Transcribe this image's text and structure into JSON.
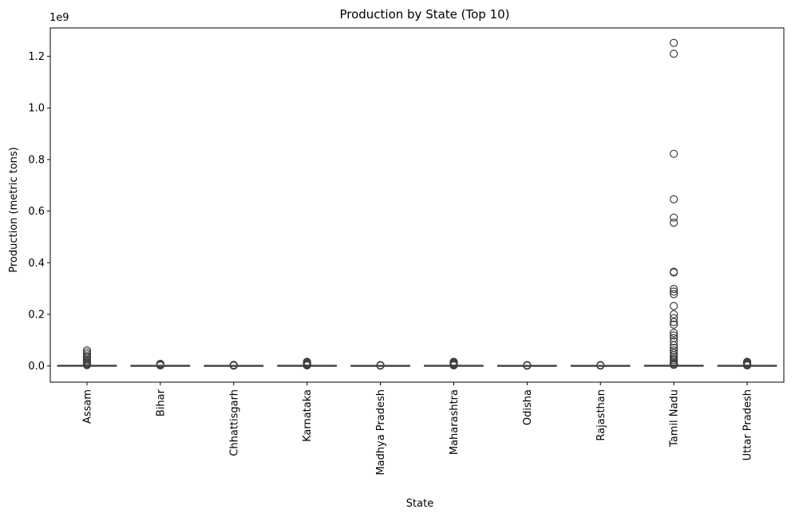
{
  "chart_data": {
    "type": "box",
    "title": "Production by State (Top 10)",
    "xlabel": "State",
    "ylabel": "Production (metric tons)",
    "y_scale_label": "1e9",
    "y_scale": 1000000000,
    "ylim": [
      -0.063,
      1.31
    ],
    "yticks": [
      0.0,
      0.2,
      0.4,
      0.6,
      0.8,
      1.0,
      1.2
    ],
    "ytick_labels": [
      "0.0",
      "0.2",
      "0.4",
      "0.6",
      "0.8",
      "1.0",
      "1.2"
    ],
    "categories": [
      "Assam",
      "Bihar",
      "Chhattisgarh",
      "Karnataka",
      "Madhya Pradesh",
      "Maharashtra",
      "Odisha",
      "Rajasthan",
      "Tamil Nadu",
      "Uttar Pradesh"
    ],
    "box_color": "#1f77b4",
    "series": [
      {
        "q1": 0,
        "median": 0,
        "q3": 0.0005,
        "whisker_low": 0,
        "whisker_high": 0.001,
        "outliers": [
          0.06,
          0.052,
          0.045,
          0.038,
          0.032,
          0.026,
          0.021,
          0.016,
          0.012,
          0.008,
          0.005,
          0.003
        ]
      },
      {
        "q1": 0,
        "median": 0,
        "q3": 0.0003,
        "whisker_low": 0,
        "whisker_high": 0.0006,
        "outliers": [
          0.008,
          0.006,
          0.004,
          0.002
        ]
      },
      {
        "q1": 0,
        "median": 0,
        "q3": 0.0002,
        "whisker_low": 0,
        "whisker_high": 0.0004,
        "outliers": [
          0.004,
          0.003,
          0.002,
          0.001
        ]
      },
      {
        "q1": 0,
        "median": 0,
        "q3": 0.0004,
        "whisker_low": 0,
        "whisker_high": 0.0008,
        "outliers": [
          0.016,
          0.013,
          0.01,
          0.007,
          0.005,
          0.003,
          0.002
        ]
      },
      {
        "q1": 0,
        "median": 0,
        "q3": 0.0002,
        "whisker_low": 0,
        "whisker_high": 0.0004,
        "outliers": [
          0.003,
          0.002,
          0.001
        ]
      },
      {
        "q1": 0,
        "median": 0,
        "q3": 0.0004,
        "whisker_low": 0,
        "whisker_high": 0.0008,
        "outliers": [
          0.016,
          0.013,
          0.01,
          0.007,
          0.005,
          0.003,
          0.002
        ]
      },
      {
        "q1": 0,
        "median": 0,
        "q3": 0.0002,
        "whisker_low": 0,
        "whisker_high": 0.0004,
        "outliers": [
          0.003,
          0.002,
          0.001
        ]
      },
      {
        "q1": 0,
        "median": 0,
        "q3": 0.0002,
        "whisker_low": 0,
        "whisker_high": 0.0004,
        "outliers": [
          0.003,
          0.002,
          0.001
        ]
      },
      {
        "q1": 0,
        "median": 0,
        "q3": 0.0006,
        "whisker_low": 0,
        "whisker_high": 0.0012,
        "outliers": [
          1.252,
          1.21,
          0.822,
          0.646,
          0.575,
          0.555,
          0.365,
          0.362,
          0.298,
          0.288,
          0.278,
          0.232,
          0.2,
          0.185,
          0.17,
          0.16,
          0.128,
          0.118,
          0.108,
          0.095,
          0.08,
          0.07,
          0.06,
          0.05,
          0.042,
          0.035,
          0.028,
          0.022,
          0.016,
          0.011,
          0.007,
          0.004
        ]
      },
      {
        "q1": 0,
        "median": 0,
        "q3": 0.0004,
        "whisker_low": 0,
        "whisker_high": 0.0008,
        "outliers": [
          0.016,
          0.013,
          0.01,
          0.007,
          0.005,
          0.003,
          0.002
        ]
      }
    ]
  }
}
